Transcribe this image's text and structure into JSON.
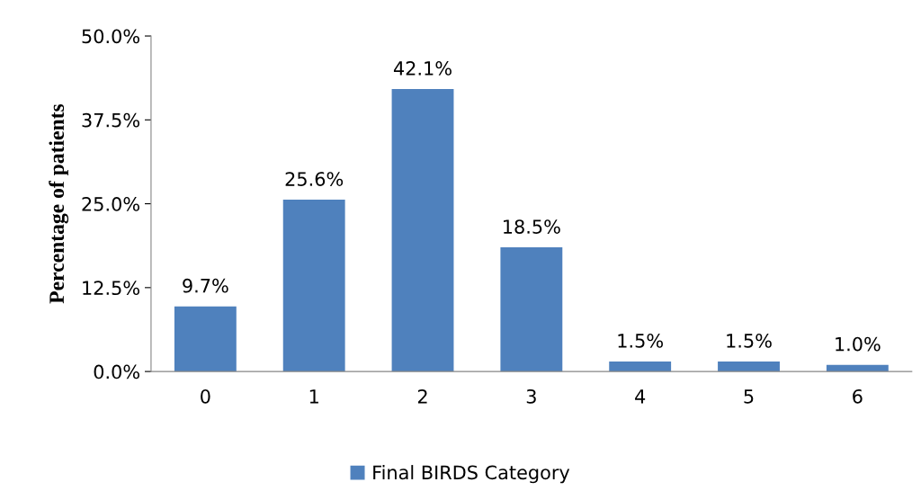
{
  "chart_data": {
    "type": "bar",
    "ylabel": "Percentage of patients",
    "categories": [
      "0",
      "1",
      "2",
      "3",
      "4",
      "5",
      "6"
    ],
    "series": [
      {
        "name": "Final BIRDS Category",
        "color": "#4f81bd",
        "values": [
          9.7,
          25.6,
          42.1,
          18.5,
          1.5,
          1.5,
          1.0
        ],
        "value_labels": [
          "9.7%",
          "25.6%",
          "42.1%",
          "18.5%",
          "1.5%",
          "1.5%",
          "1.0%"
        ]
      }
    ],
    "ylim": [
      0,
      50
    ],
    "yticks": [
      {
        "value": 0,
        "label": "0.0%"
      },
      {
        "value": 12.5,
        "label": "12.5%"
      },
      {
        "value": 25,
        "label": "25.0%"
      },
      {
        "value": 37.5,
        "label": "37.5%"
      },
      {
        "value": 50,
        "label": "50.0%"
      }
    ],
    "grid": false,
    "legend": "bottom"
  }
}
